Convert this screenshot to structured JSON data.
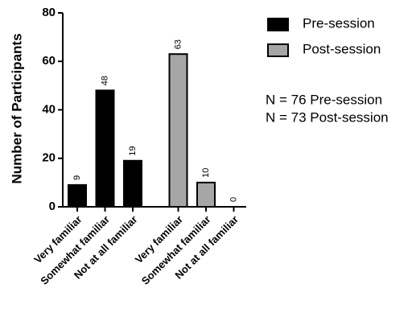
{
  "chart_data": {
    "type": "bar",
    "y_label": "Number of Participants",
    "categories": [
      "Very familiar",
      "Somewhat familiar",
      "Not at all familiar",
      "Very familiar",
      "Somewhat familiar",
      "Not at all familiar"
    ],
    "series": [
      {
        "name": "Pre-session",
        "color": "#000000",
        "values": [
          9,
          48,
          19,
          null,
          null,
          null
        ]
      },
      {
        "name": "Post-session",
        "color": "#a6a6a6",
        "values": [
          null,
          null,
          null,
          63,
          10,
          0
        ]
      }
    ],
    "ylim": [
      0,
      80
    ],
    "yticks": [
      0,
      20,
      40,
      60,
      80
    ],
    "annotations": [
      "N = 76 Pre-session",
      "N = 73 Post-session"
    ]
  }
}
